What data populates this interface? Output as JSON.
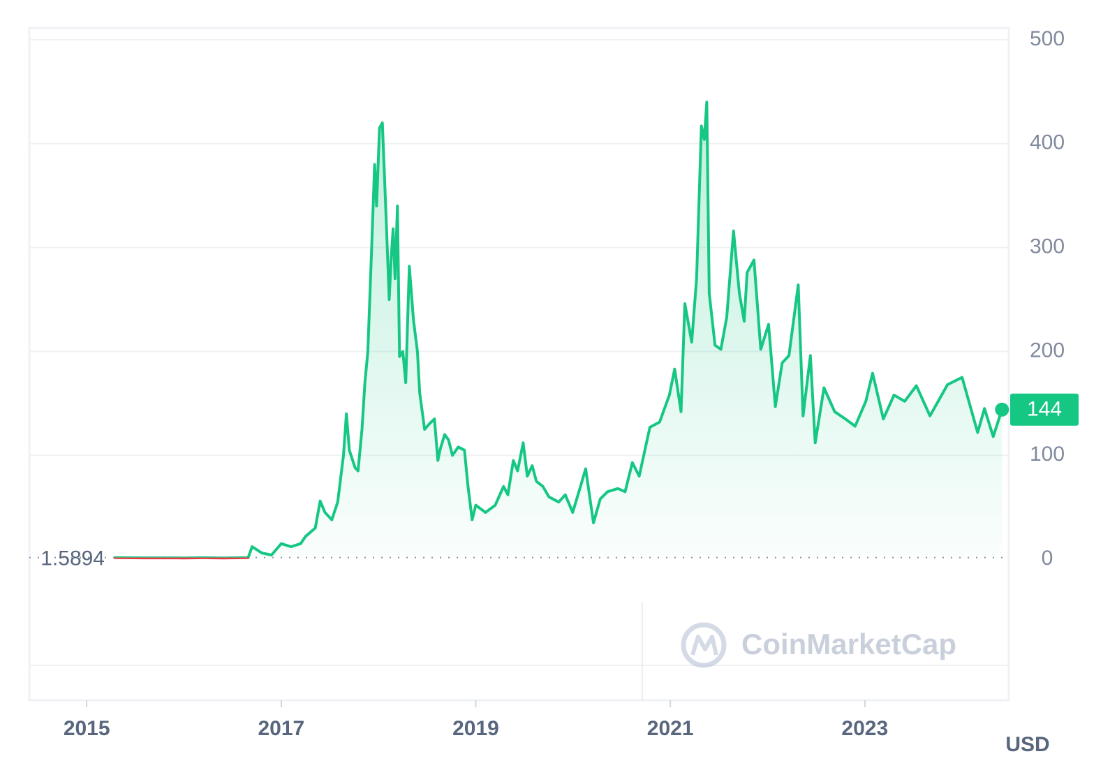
{
  "chart_data": {
    "type": "line",
    "x": [
      2015.28,
      2015.6,
      2016.0,
      2016.2,
      2016.4,
      2016.66,
      2016.7,
      2016.8,
      2016.9,
      2017.0,
      2017.1,
      2017.2,
      2017.25,
      2017.35,
      2017.4,
      2017.45,
      2017.52,
      2017.58,
      2017.64,
      2017.67,
      2017.7,
      2017.76,
      2017.79,
      2017.83,
      2017.86,
      2017.89,
      2017.93,
      2017.96,
      2017.98,
      2018.01,
      2018.04,
      2018.08,
      2018.11,
      2018.13,
      2018.15,
      2018.17,
      2018.195,
      2018.216,
      2018.25,
      2018.28,
      2018.317,
      2018.36,
      2018.4,
      2018.424,
      2018.474,
      2018.52,
      2018.575,
      2018.61,
      2018.632,
      2018.68,
      2018.719,
      2018.76,
      2018.82,
      2018.884,
      2018.92,
      2018.963,
      2019.0,
      2019.1,
      2019.2,
      2019.286,
      2019.33,
      2019.386,
      2019.43,
      2019.487,
      2019.53,
      2019.58,
      2019.623,
      2019.69,
      2019.752,
      2019.853,
      2019.92,
      2019.996,
      2020.07,
      2020.13,
      2020.21,
      2020.28,
      2020.355,
      2020.46,
      2020.535,
      2020.61,
      2020.68,
      2020.79,
      2020.89,
      2020.99,
      2021.045,
      2021.11,
      2021.15,
      2021.22,
      2021.27,
      2021.32,
      2021.35,
      2021.375,
      2021.4,
      2021.46,
      2021.52,
      2021.58,
      2021.65,
      2021.71,
      2021.76,
      2021.79,
      2021.86,
      2021.93,
      2022.01,
      2022.08,
      2022.15,
      2022.22,
      2022.315,
      2022.365,
      2022.44,
      2022.49,
      2022.58,
      2022.69,
      2022.8,
      2022.9,
      2023.01,
      2023.08,
      2023.19,
      2023.3,
      2023.41,
      2023.53,
      2023.67,
      2023.85,
      2024.0,
      2024.09,
      2024.16,
      2024.23,
      2024.32,
      2024.41
    ],
    "values": [
      1.5,
      1.3,
      1.2,
      1.4,
      1.2,
      1.5,
      12,
      6,
      4,
      15,
      12,
      15,
      22,
      30,
      56,
      45,
      38,
      55,
      100,
      140,
      105,
      88,
      85,
      125,
      170,
      200,
      300,
      380,
      340,
      415,
      420,
      325,
      250,
      290,
      318,
      270,
      340,
      195,
      200,
      170,
      282,
      230,
      200,
      160,
      125,
      130,
      135,
      95,
      105,
      120,
      115,
      100,
      108,
      105,
      70,
      38,
      52,
      45,
      52,
      70,
      62,
      95,
      85,
      112,
      80,
      90,
      75,
      70,
      60,
      55,
      62,
      45,
      68,
      87,
      35,
      58,
      65,
      68,
      65,
      93,
      80,
      127,
      132,
      158,
      183,
      142,
      246,
      209,
      270,
      417,
      404,
      440,
      256,
      206,
      202,
      233,
      316,
      256,
      229,
      276,
      288,
      202,
      226,
      147,
      189,
      196,
      264,
      138,
      196,
      112,
      165,
      142,
      135,
      128,
      152,
      179,
      135,
      158,
      152,
      167,
      138,
      168,
      175,
      145,
      122,
      145,
      118,
      144
    ],
    "baseline": 1.5894,
    "color": "#16c784",
    "below_color": "#ea3943",
    "xlim": [
      2014.41,
      2024.48
    ],
    "xticks": [
      2015,
      2017,
      2019,
      2021,
      2023
    ],
    "ylim": [
      0,
      500
    ],
    "yticks": [
      0,
      100,
      200,
      300,
      400,
      500
    ],
    "grid": true,
    "currency": "USD",
    "watermark": "CoinMarketCap"
  }
}
